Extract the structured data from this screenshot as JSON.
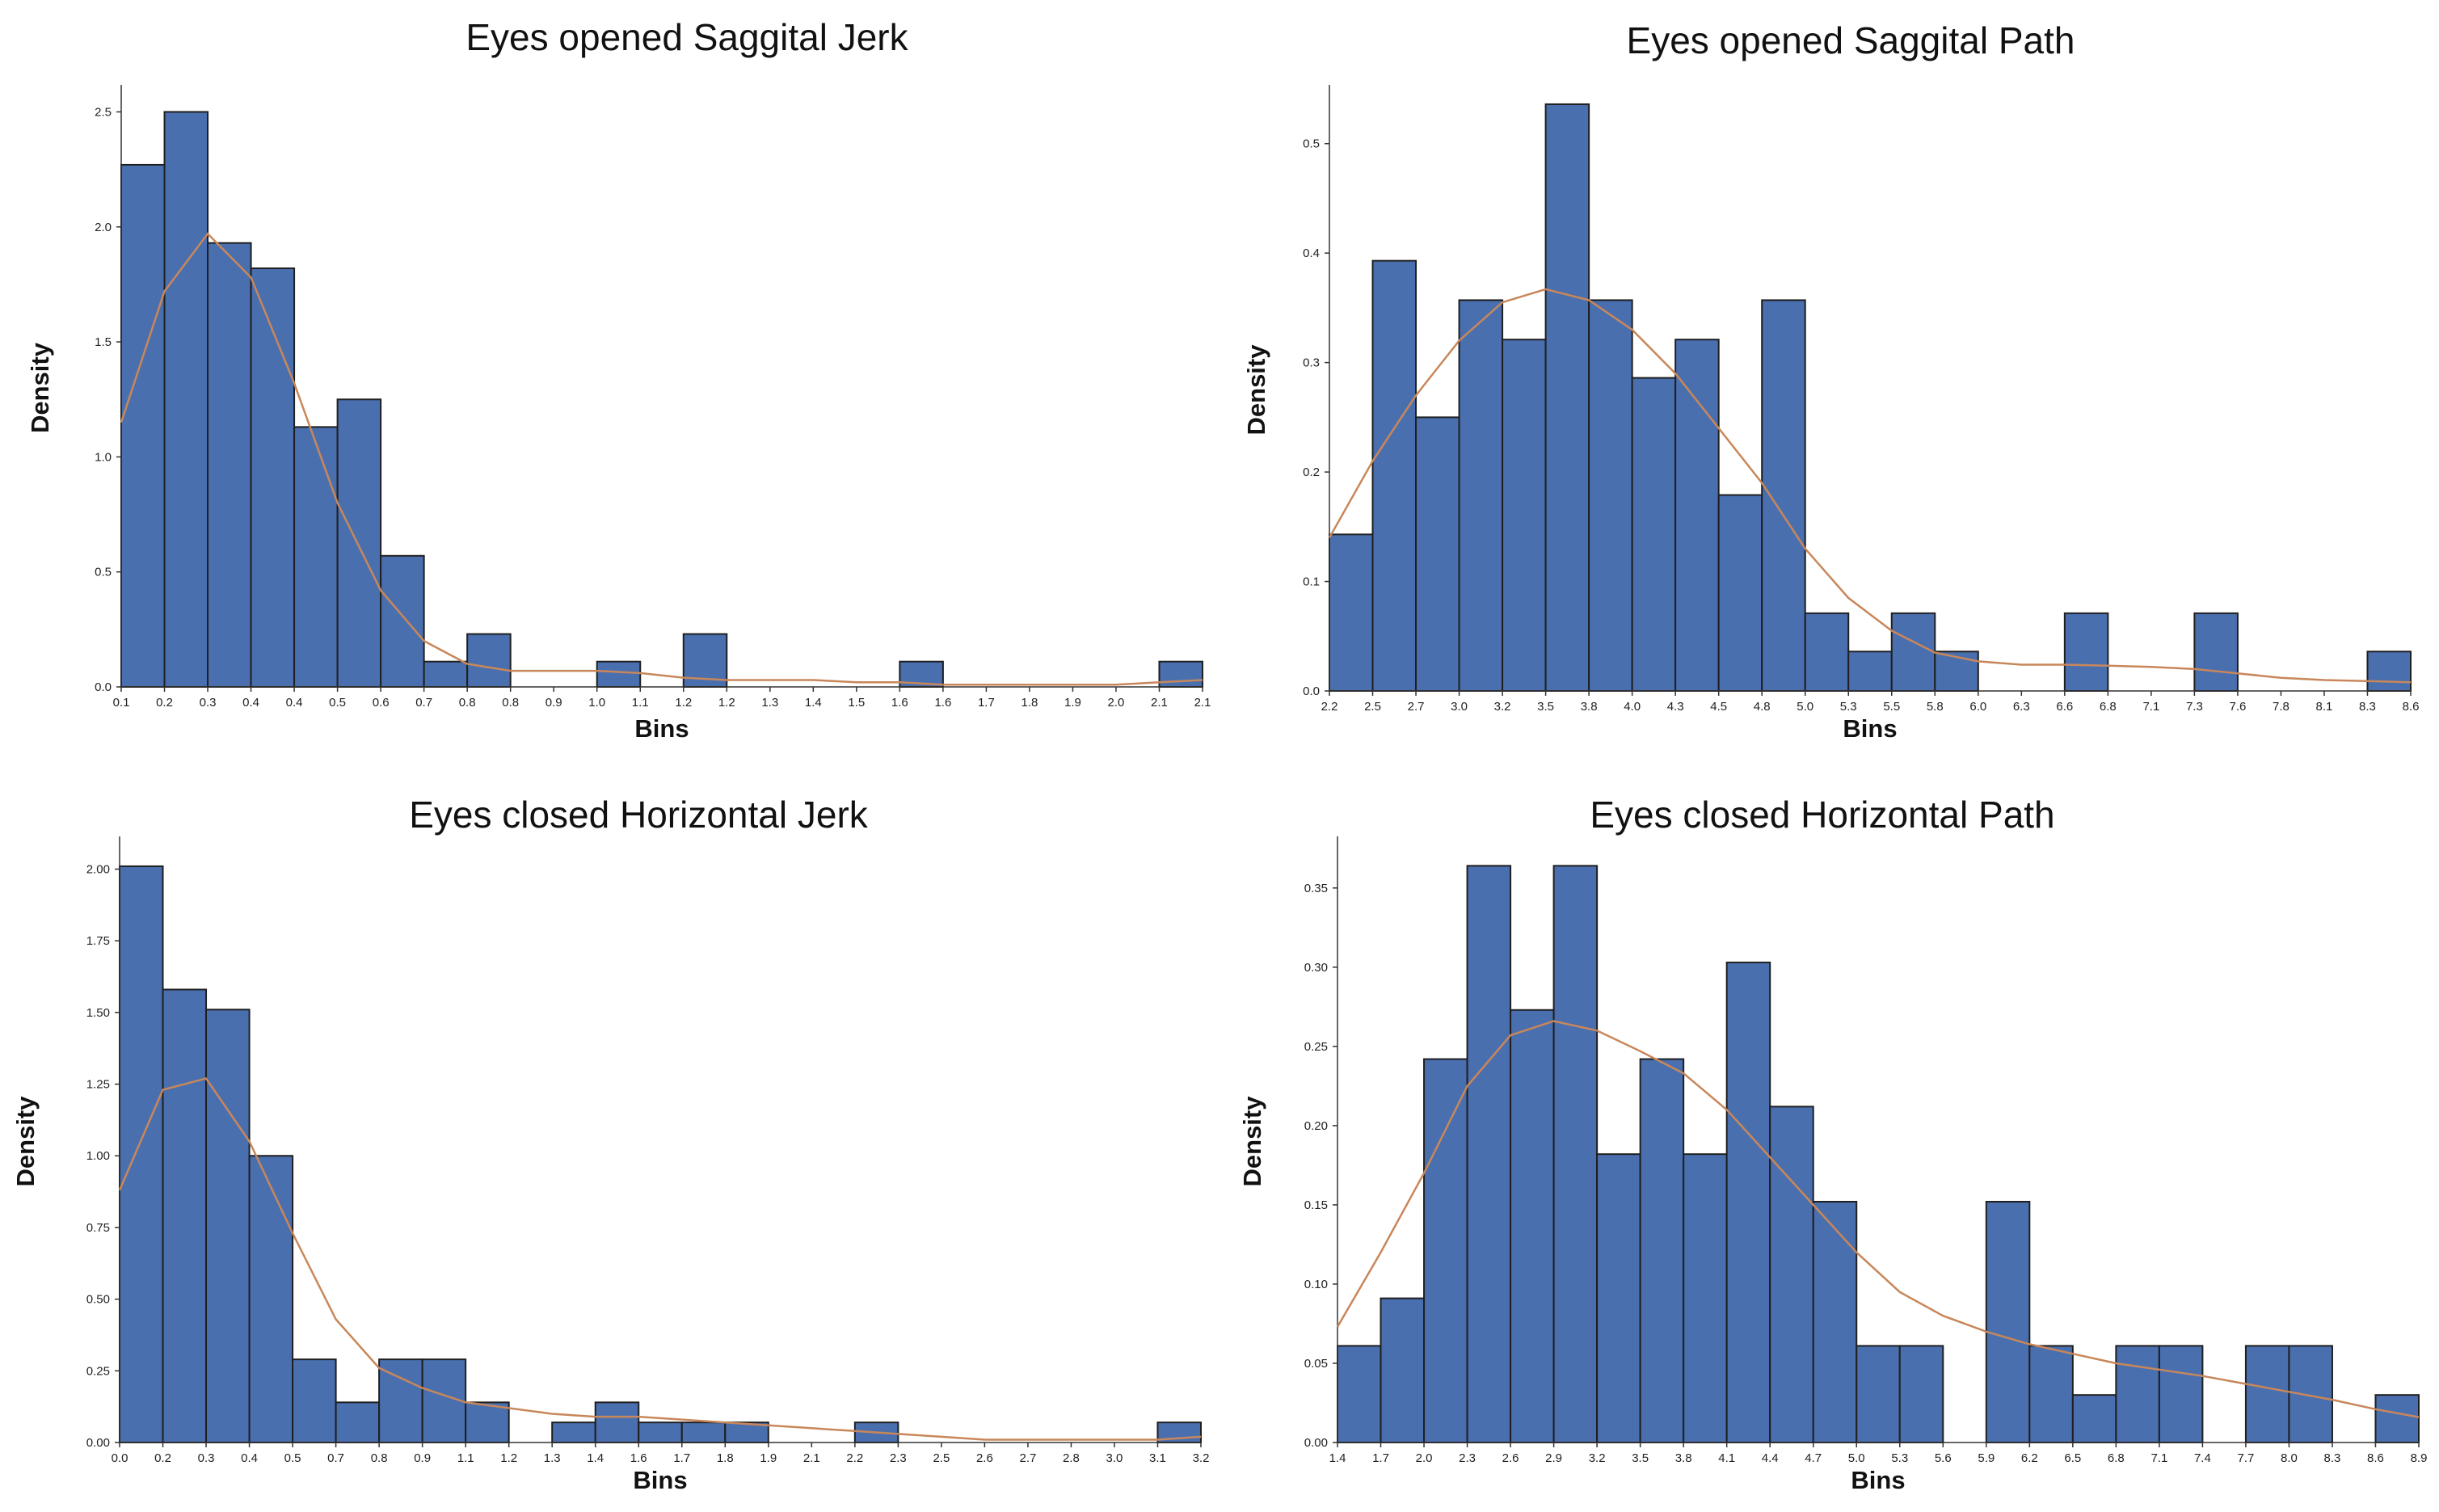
{
  "chart_data": [
    {
      "type": "histogram",
      "title": "Eyes opened Saggital Jerk",
      "xlabel": "Bins",
      "ylabel": "Density",
      "ylim": [
        0,
        2.6
      ],
      "yticks": [
        "0.0",
        "0.5",
        "1.0",
        "1.5",
        "2.0",
        "2.5"
      ],
      "xticks": [
        "0.1",
        "0.2",
        "0.3",
        "0.4",
        "0.4",
        "0.5",
        "0.6",
        "0.7",
        "0.8",
        "0.8",
        "0.9",
        "1.0",
        "1.1",
        "1.2",
        "1.2",
        "1.3",
        "1.4",
        "1.5",
        "1.6",
        "1.6",
        "1.7",
        "1.8",
        "1.9",
        "2.0",
        "2.1",
        "2.1"
      ],
      "values": [
        2.27,
        2.5,
        1.93,
        1.82,
        1.13,
        1.25,
        0.57,
        0.11,
        0.23,
        0,
        0,
        0.11,
        0,
        0.23,
        0,
        0,
        0,
        0,
        0.11,
        0,
        0,
        0,
        0,
        0,
        0.11
      ],
      "kde": [
        1.15,
        1.72,
        1.97,
        1.78,
        1.32,
        0.8,
        0.42,
        0.2,
        0.1,
        0.07,
        0.07,
        0.07,
        0.06,
        0.04,
        0.03,
        0.03,
        0.03,
        0.02,
        0.02,
        0.01,
        0.01,
        0.01,
        0.01,
        0.01,
        0.02,
        0.03
      ]
    },
    {
      "type": "histogram",
      "title": "Eyes opened Saggital Path",
      "xlabel": "Bins",
      "ylabel": "Density",
      "ylim": [
        0,
        0.55
      ],
      "yticks": [
        "0.0",
        "0.1",
        "0.2",
        "0.3",
        "0.4",
        "0.5"
      ],
      "xticks": [
        "2.2",
        "2.5",
        "2.7",
        "3.0",
        "3.2",
        "3.5",
        "3.8",
        "4.0",
        "4.3",
        "4.5",
        "4.8",
        "5.0",
        "5.3",
        "5.5",
        "5.8",
        "6.0",
        "6.3",
        "6.6",
        "6.8",
        "7.1",
        "7.3",
        "7.6",
        "7.8",
        "8.1",
        "8.3",
        "8.6"
      ],
      "values": [
        0.143,
        0.393,
        0.25,
        0.357,
        0.321,
        0.536,
        0.357,
        0.286,
        0.321,
        0.179,
        0.357,
        0.071,
        0.036,
        0.071,
        0.036,
        0,
        0,
        0.071,
        0,
        0,
        0.071,
        0,
        0,
        0,
        0.036
      ],
      "kde": [
        0.14,
        0.21,
        0.27,
        0.32,
        0.355,
        0.367,
        0.357,
        0.33,
        0.29,
        0.24,
        0.19,
        0.13,
        0.085,
        0.055,
        0.035,
        0.027,
        0.024,
        0.024,
        0.023,
        0.022,
        0.02,
        0.016,
        0.012,
        0.01,
        0.009,
        0.008
      ]
    },
    {
      "type": "histogram",
      "title": "Eyes closed Horizontal Jerk",
      "xlabel": "Bins",
      "ylabel": "Density",
      "ylim": [
        0,
        2.1
      ],
      "yticks": [
        "0.00",
        "0.25",
        "0.50",
        "0.75",
        "1.00",
        "1.25",
        "1.50",
        "1.75",
        "2.00"
      ],
      "xticks": [
        "0.0",
        "0.2",
        "0.3",
        "0.4",
        "0.5",
        "0.7",
        "0.8",
        "0.9",
        "1.1",
        "1.2",
        "1.3",
        "1.4",
        "1.6",
        "1.7",
        "1.8",
        "1.9",
        "2.1",
        "2.2",
        "2.3",
        "2.5",
        "2.6",
        "2.7",
        "2.8",
        "3.0",
        "3.1",
        "3.2"
      ],
      "values": [
        2.01,
        1.58,
        1.51,
        1.0,
        0.29,
        0.14,
        0.29,
        0.29,
        0.14,
        0,
        0.07,
        0.14,
        0.07,
        0.07,
        0.07,
        0,
        0,
        0.07,
        0,
        0,
        0,
        0,
        0,
        0,
        0.07
      ],
      "kde": [
        0.88,
        1.23,
        1.27,
        1.05,
        0.73,
        0.43,
        0.26,
        0.19,
        0.14,
        0.12,
        0.1,
        0.09,
        0.09,
        0.08,
        0.07,
        0.06,
        0.05,
        0.04,
        0.03,
        0.02,
        0.01,
        0.01,
        0.01,
        0.01,
        0.01,
        0.02
      ]
    },
    {
      "type": "histogram",
      "title": "Eyes closed Horizontal Path",
      "xlabel": "Bins",
      "ylabel": "Density",
      "ylim": [
        0,
        0.38
      ],
      "yticks": [
        "0.00",
        "0.05",
        "0.10",
        "0.15",
        "0.20",
        "0.25",
        "0.30",
        "0.35"
      ],
      "xticks": [
        "1.4",
        "1.7",
        "2.0",
        "2.3",
        "2.6",
        "2.9",
        "3.2",
        "3.5",
        "3.8",
        "4.1",
        "4.4",
        "4.7",
        "5.0",
        "5.3",
        "5.6",
        "5.9",
        "6.2",
        "6.5",
        "6.8",
        "7.1",
        "7.4",
        "7.7",
        "8.0",
        "8.3",
        "8.6",
        "8.9"
      ],
      "values": [
        0.061,
        0.091,
        0.242,
        0.364,
        0.273,
        0.364,
        0.182,
        0.242,
        0.182,
        0.303,
        0.212,
        0.152,
        0.061,
        0.061,
        0,
        0.152,
        0.061,
        0.03,
        0.061,
        0.061,
        0,
        0.061,
        0.061,
        0,
        0.03
      ],
      "kde": [
        0.073,
        0.12,
        0.17,
        0.225,
        0.257,
        0.266,
        0.26,
        0.247,
        0.233,
        0.21,
        0.18,
        0.15,
        0.12,
        0.095,
        0.08,
        0.07,
        0.062,
        0.056,
        0.05,
        0.046,
        0.042,
        0.037,
        0.032,
        0.027,
        0.021,
        0.016
      ]
    }
  ]
}
